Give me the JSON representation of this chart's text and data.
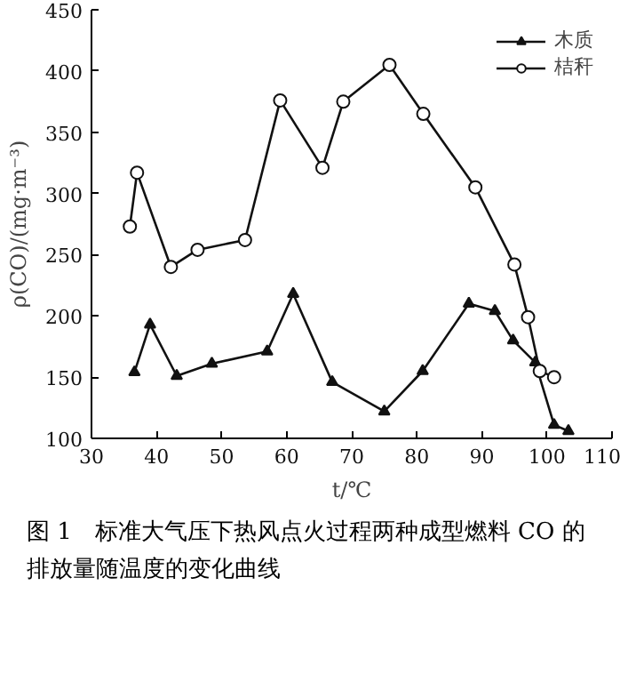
{
  "chart_data": {
    "type": "line",
    "title": "图 1　标准大气压下热风点火过程两种成型燃料 CO 的排放量随温度的变化曲线",
    "xlabel": "t/℃",
    "ylabel": "ρ(CO)/(mg·m⁻³)",
    "xlim": [
      30,
      110
    ],
    "xticks": [
      30,
      40,
      50,
      60,
      70,
      80,
      90,
      100,
      110
    ],
    "ylim": [
      100,
      450
    ],
    "yticks": [
      100,
      150,
      200,
      250,
      300,
      350,
      400,
      450
    ],
    "grid": false,
    "legend": "top right",
    "line_style": "solid",
    "series": [
      {
        "name": "木质",
        "color": "#111111",
        "marker": "triangle",
        "x": [
          36.6,
          39,
          43.1,
          48.5,
          57,
          61,
          67,
          75,
          80.9,
          88,
          92,
          94.8,
          98.2,
          101.1,
          103.3
        ],
        "values": [
          154,
          193,
          151,
          161,
          171,
          218,
          146,
          122,
          155,
          210,
          204,
          180,
          162,
          111,
          106
        ]
      },
      {
        "name": "桔秆",
        "color": "#111111",
        "marker": "circle",
        "x": [
          35.9,
          37,
          42.2,
          46.3,
          53.6,
          59,
          65.5,
          68.7,
          75.8,
          81,
          89,
          95,
          97.1,
          98.9,
          101.1
        ],
        "values": [
          273,
          317,
          240,
          254,
          262,
          376,
          321,
          375,
          405,
          365,
          305,
          242,
          199,
          155,
          150
        ]
      }
    ]
  }
}
